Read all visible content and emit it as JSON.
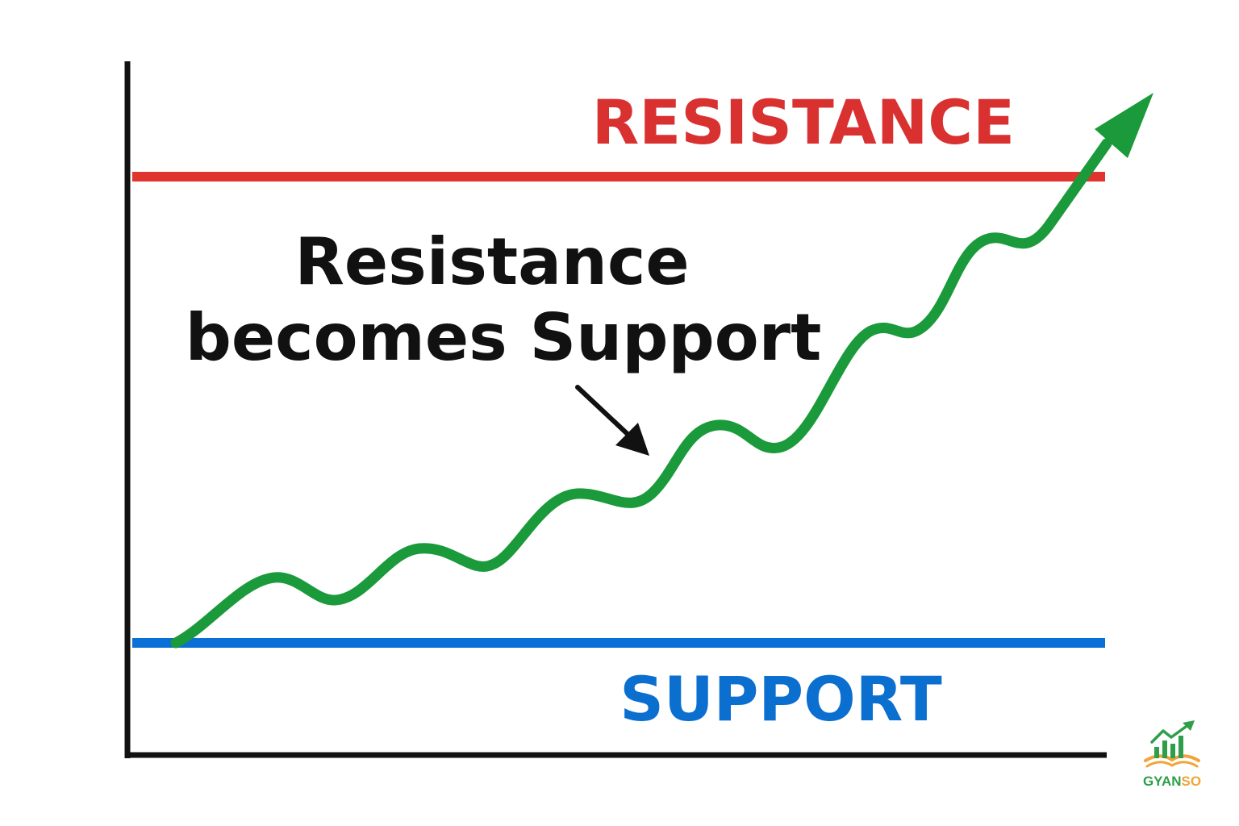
{
  "labels": {
    "resistance": "RESISTANCE",
    "support": "SUPPORT",
    "annotation_line1": "Resistance",
    "annotation_line2": "becomes Support"
  },
  "logo": {
    "text_part1": "GYAN",
    "text_part2": "SO",
    "icon": "growth-chart-book-icon"
  },
  "colors": {
    "resistance": "#e0352e",
    "support": "#0a6fd6",
    "trend": "#1a9a3a",
    "axis": "#111111",
    "annotation_arrow": "#111111",
    "logo_green": "#2e9e4a",
    "logo_orange": "#f2a43a"
  }
}
